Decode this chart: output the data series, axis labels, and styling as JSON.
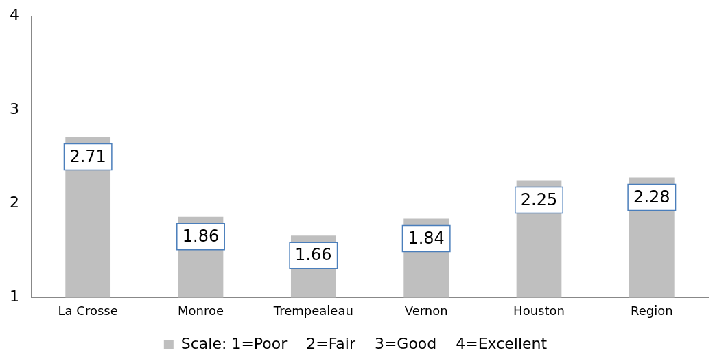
{
  "chart_data": {
    "type": "bar",
    "categories": [
      "La Crosse",
      "Monroe",
      "Trempealeau",
      "Vernon",
      "Houston",
      "Region"
    ],
    "series": [
      {
        "name": "Scale: 1=Poor    2=Fair    3=Good    4=Excellent",
        "color": "#bfbfbf",
        "values": [
          2.71,
          1.86,
          1.66,
          1.84,
          2.25,
          2.28
        ]
      }
    ],
    "ylim": [
      1,
      4
    ],
    "yticks": [
      1,
      2,
      3,
      4
    ],
    "grid": false,
    "legend": "bottom",
    "data_labels": true
  }
}
